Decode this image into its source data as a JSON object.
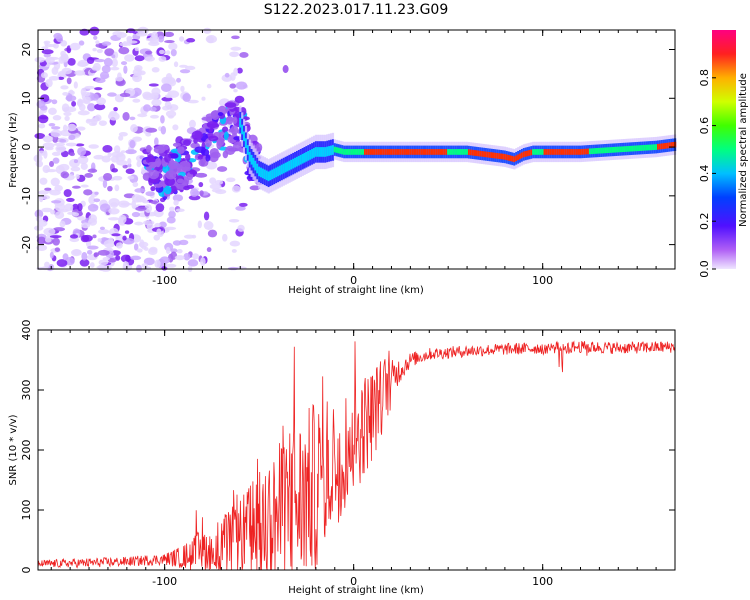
{
  "figure": {
    "title": "S122.2023.017.11.23.G09"
  },
  "chart_data": [
    {
      "type": "heatmap",
      "name": "spectrogram",
      "xlabel": "Height of straight line (km)",
      "ylabel": "Frequency (Hz)",
      "xlim": [
        -167,
        170
      ],
      "ylim": [
        -25,
        24
      ],
      "xticks": [
        -100,
        0,
        100
      ],
      "xtick_labels": [
        "-100",
        "0",
        "100"
      ],
      "yticks": [
        -20,
        -10,
        0,
        10,
        20
      ],
      "ytick_labels": [
        "-20",
        "-10",
        "0",
        "10",
        "20"
      ],
      "colorbar": {
        "label": "Normalized spectral amplitude",
        "range": [
          0.0,
          1.0
        ],
        "ticks": [
          0.0,
          0.2,
          0.4,
          0.6,
          0.8
        ],
        "tick_labels": [
          "0.0",
          "0.2",
          "0.4",
          "0.6",
          "0.8"
        ],
        "colormap": [
          "#e8e0ff",
          "#a020f0",
          "#3020ff",
          "#00c8ff",
          "#00ff60",
          "#c0ff00",
          "#ffd000",
          "#ff3000",
          "#ff007f"
        ]
      },
      "ridge": {
        "description_points_x": [
          -167,
          -100,
          -85,
          -75,
          -65,
          -60,
          -55,
          -50,
          -45,
          -40,
          -35,
          -30,
          -25,
          -20,
          -15,
          -10,
          -5,
          0,
          20,
          50,
          60,
          70,
          80,
          85,
          90,
          95,
          100,
          110,
          120,
          140,
          160,
          170
        ],
        "freq_hz": [
          0,
          -5,
          -3,
          2,
          4,
          5,
          -2,
          -5,
          -6,
          -5,
          -4,
          -3,
          -2,
          -1,
          -1,
          -0.5,
          -1,
          -1,
          -1,
          -1,
          -1,
          -1.5,
          -2,
          -2.5,
          -1.5,
          -1,
          -1,
          -1,
          -1,
          -0.5,
          0,
          0.5
        ]
      }
    },
    {
      "type": "line",
      "name": "snr",
      "xlabel": "Height of straight line (km)",
      "ylabel": "SNR (10 * v/v)",
      "xlim": [
        -167,
        170
      ],
      "ylim": [
        0,
        400
      ],
      "xticks": [
        -100,
        0,
        100
      ],
      "xtick_labels": [
        "-100",
        "0",
        "100"
      ],
      "yticks": [
        0,
        100,
        200,
        300,
        400
      ],
      "ytick_labels": [
        "0",
        "100",
        "200",
        "300",
        "400"
      ],
      "color": "#ee2222",
      "series_envelope": {
        "x": [
          -167,
          -140,
          -120,
          -100,
          -90,
          -80,
          -70,
          -60,
          -50,
          -40,
          -30,
          -20,
          -10,
          0,
          10,
          20,
          30,
          40,
          60,
          80,
          100,
          120,
          140,
          170
        ],
        "baseline": [
          10,
          12,
          14,
          18,
          22,
          30,
          40,
          55,
          70,
          90,
          110,
          140,
          180,
          220,
          260,
          320,
          350,
          360,
          365,
          368,
          370,
          372,
          370,
          372
        ],
        "noise_amp": [
          8,
          10,
          10,
          12,
          25,
          50,
          60,
          80,
          120,
          150,
          180,
          180,
          140,
          120,
          100,
          60,
          25,
          20,
          20,
          20,
          20,
          20,
          20,
          20
        ]
      }
    }
  ]
}
